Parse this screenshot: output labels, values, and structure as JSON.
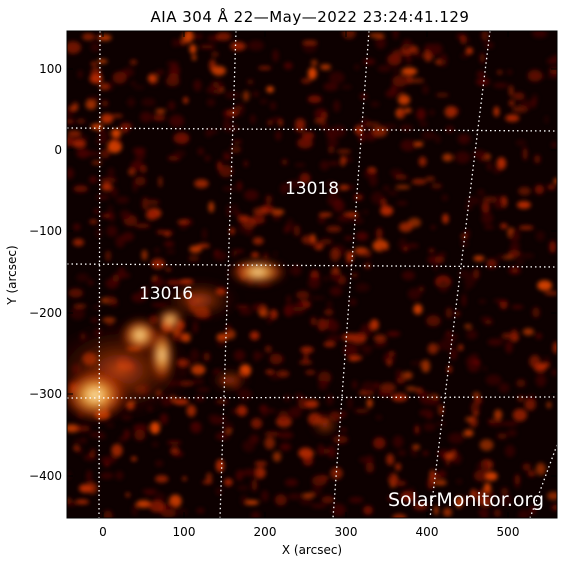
{
  "title": "AIA 304 Å 22—May—2022 23:24:41.129",
  "axes": {
    "xlabel": "X (arcsec)",
    "ylabel": "Y (arcsec)",
    "x_ticks": [
      "0",
      "100",
      "200",
      "300",
      "400",
      "500"
    ],
    "y_ticks": [
      "100",
      "0",
      "−100",
      "−200",
      "−300",
      "−400"
    ]
  },
  "regions": [
    {
      "number": "13018"
    },
    {
      "number": "13016"
    }
  ],
  "watermark": "SolarMonitor.org",
  "colors": {
    "background": "#0d0000",
    "emission_dim": "#5a0800",
    "emission_mid": "#c63000",
    "emission_bright": "#ffd27a",
    "grid": "#ffffff"
  }
}
